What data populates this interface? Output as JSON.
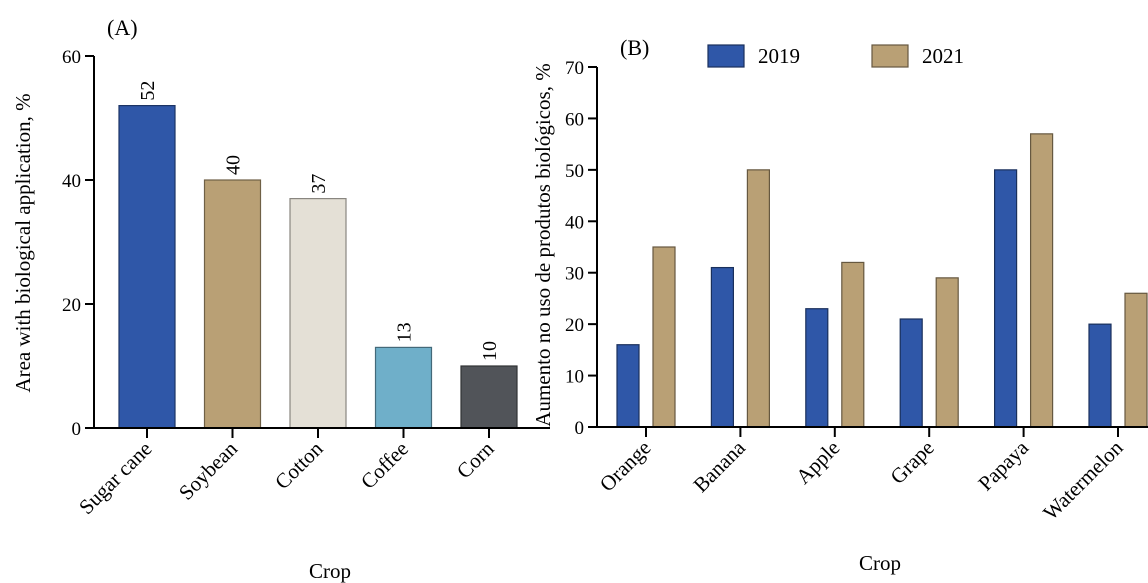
{
  "chart_data": [
    {
      "type": "bar",
      "panel_label": "(A)",
      "categories": [
        "Sugar cane",
        "Soybean",
        "Cotton",
        "Coffee",
        "Corn"
      ],
      "values": [
        52,
        40,
        37,
        13,
        10
      ],
      "data_labels": [
        "52",
        "40",
        "37",
        "13",
        "10"
      ],
      "colors": [
        "#2f57a8",
        "#b9a075",
        "#e4e0d6",
        "#6fafc9",
        "#515459"
      ],
      "xlabel": "Crop",
      "ylabel": "Area with biological application, %",
      "ylim": [
        0,
        60
      ],
      "yticks": [
        "0",
        "20",
        "40",
        "60"
      ],
      "grid": false
    },
    {
      "type": "bar",
      "panel_label": "(B)",
      "categories": [
        "Orange",
        "Banana",
        "Apple",
        "Grape",
        "Papaya",
        "Watermelon"
      ],
      "series": [
        {
          "name": "2019",
          "values": [
            16,
            31,
            23,
            21,
            50,
            20
          ],
          "color": "#2f57a8"
        },
        {
          "name": "2021",
          "values": [
            35,
            50,
            32,
            29,
            57,
            26
          ],
          "color": "#b9a075"
        }
      ],
      "xlabel": "Crop",
      "ylabel": "Aumento no uso de produtos biológicos, %",
      "ylim": [
        0,
        70
      ],
      "yticks": [
        "0",
        "10",
        "20",
        "30",
        "40",
        "50",
        "60",
        "70"
      ],
      "legend_position": "top",
      "grid": false
    }
  ]
}
